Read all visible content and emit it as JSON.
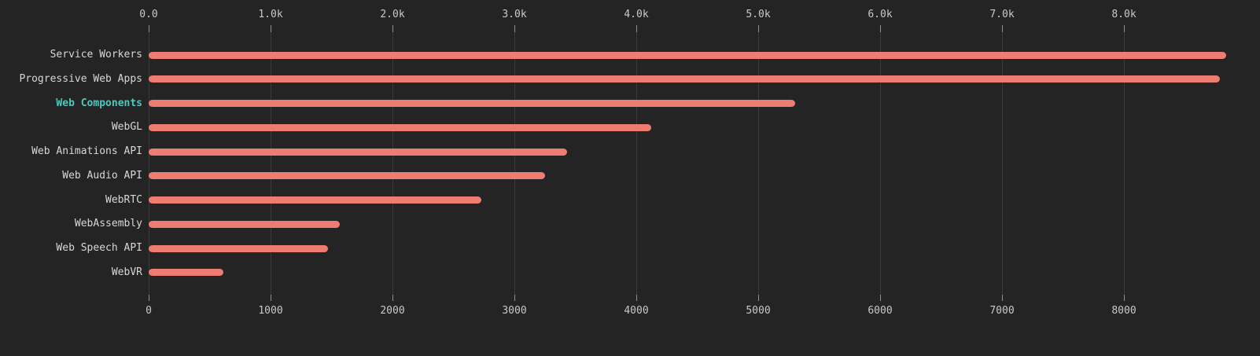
{
  "chart_data": {
    "type": "bar",
    "orientation": "horizontal",
    "title": "",
    "xlabel": "",
    "ylabel": "",
    "categories": [
      "Service Workers",
      "Progressive Web Apps",
      "Web Components",
      "WebGL",
      "Web Animations API",
      "Web Audio API",
      "WebRTC",
      "WebAssembly",
      "Web Speech API",
      "WebVR"
    ],
    "values": [
      8840,
      8790,
      5300,
      4120,
      3430,
      3250,
      2730,
      1570,
      1470,
      610
    ],
    "highlighted_category": "Web Components",
    "legend": [],
    "x_axis": {
      "tick_values": [
        0,
        1000,
        2000,
        3000,
        4000,
        5000,
        6000,
        7000,
        8000
      ],
      "top_tick_labels": [
        "0.0",
        "1.0k",
        "2.0k",
        "3.0k",
        "4.0k",
        "5.0k",
        "6.0k",
        "7.0k",
        "8.0k"
      ],
      "bottom_tick_labels": [
        "0",
        "1000",
        "2000",
        "3000",
        "4000",
        "5000",
        "6000",
        "7000",
        "8000"
      ],
      "xlim": [
        0,
        9115
      ],
      "grid": true
    },
    "colors": {
      "background": "#242424",
      "bar": "#ee7c72",
      "gridline": "#3a3a3a",
      "tick": "#8f8f8f",
      "axis_label_text": "#c9c9c9",
      "category_label_text": "#d8d8d8",
      "highlight_text": "#4fc8bd"
    }
  }
}
